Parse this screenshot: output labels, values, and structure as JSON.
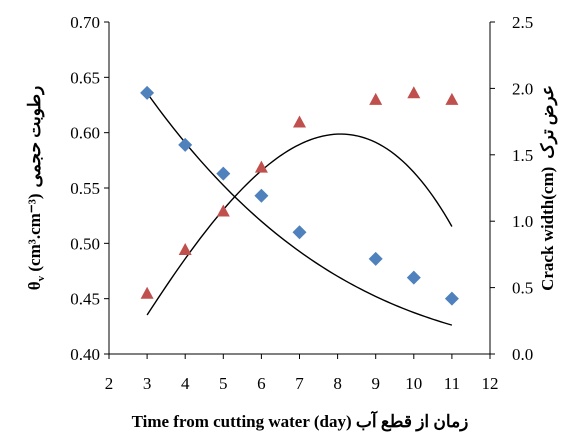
{
  "chart_data": {
    "type": "scatter",
    "x_label": "Time from cutting water (day) زمان از قطع آب",
    "y_left_label_main": "θ",
    "y_left_label_sub": "v",
    "y_left_label_unit": " (cm³.cm⁻³)",
    "y_left_label_fa": "رطوبت حجمی",
    "y_right_label_main": "Crack width(cm)",
    "y_right_label_fa": "عرض ترک",
    "x_range": [
      2,
      12
    ],
    "y_left_range": [
      0.4,
      0.7
    ],
    "y_right_range": [
      0.0,
      2.5
    ],
    "x_ticks": [
      "2",
      "3",
      "4",
      "5",
      "6",
      "7",
      "8",
      "9",
      "10",
      "11",
      "12"
    ],
    "y_left_ticks": [
      "0.40",
      "0.45",
      "0.50",
      "0.55",
      "0.60",
      "0.65",
      "0.70"
    ],
    "y_right_ticks": [
      "0.0",
      "0.5",
      "1.0",
      "1.5",
      "2.0",
      "2.5"
    ],
    "grid": false,
    "series": [
      {
        "axis": "left",
        "marker": "diamond",
        "color": "#4f81bd",
        "x": [
          3,
          4,
          5,
          6,
          7,
          9,
          10,
          11
        ],
        "y": [
          0.636,
          0.589,
          0.563,
          0.543,
          0.51,
          0.486,
          0.469,
          0.45
        ]
      },
      {
        "axis": "right",
        "marker": "triangle",
        "color": "#c0504d",
        "x": [
          3,
          4,
          5,
          6,
          7,
          9,
          10,
          11
        ],
        "y": [
          0.45,
          0.78,
          1.07,
          1.4,
          1.74,
          1.91,
          1.96,
          1.91
        ]
      }
    ],
    "trendlines": [
      {
        "axis": "left",
        "type": "polynomial",
        "coefficients": [
          0.81425,
          -0.07155,
          0.0042917,
          -9.0458e-05
        ],
        "x_range": [
          3,
          11
        ]
      },
      {
        "axis": "right",
        "type": "polynomial",
        "coefficients": [
          -1.0855,
          0.44333,
          0.01625,
          -0.0036042
        ],
        "x_range": [
          3,
          11
        ]
      }
    ]
  }
}
